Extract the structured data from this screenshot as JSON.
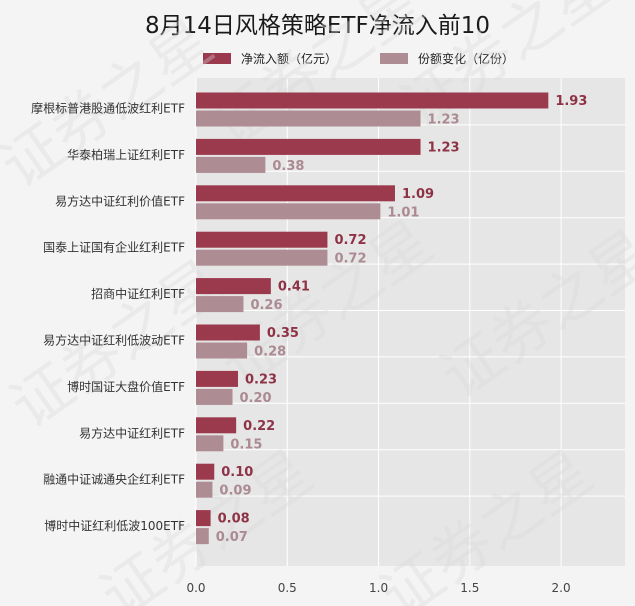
{
  "chart_data": {
    "type": "bar",
    "orientation": "horizontal",
    "title": "8月14日风格策略ETF净流入前10",
    "categories": [
      "摩根标普港股通低波红利ETF",
      "华泰柏瑞上证红利ETF",
      "易方达中证红利价值ETF",
      "国泰上证国有企业红利ETF",
      "招商中证红利ETF",
      "易方达中证红利低波动ETF",
      "博时国证大盘价值ETF",
      "易方达中证红利ETF",
      "融通中证诚通央企红利ETF",
      "博时中证红利低波100ETF"
    ],
    "series": [
      {
        "name": "净流入额（亿元）",
        "color": "#9b3a4d",
        "values": [
          1.93,
          1.23,
          1.09,
          0.72,
          0.41,
          0.35,
          0.23,
          0.22,
          0.1,
          0.08
        ],
        "labels": [
          "1.93",
          "1.23",
          "1.09",
          "0.72",
          "0.41",
          "0.35",
          "0.23",
          "0.22",
          "0.10",
          "0.08"
        ]
      },
      {
        "name": "份额变化（亿份）",
        "color": "#ae8c94",
        "values": [
          1.23,
          0.38,
          1.01,
          0.72,
          0.26,
          0.28,
          0.2,
          0.15,
          0.09,
          0.07
        ],
        "labels": [
          "1.23",
          "0.38",
          "1.01",
          "0.72",
          "0.26",
          "0.28",
          "0.20",
          "0.15",
          "0.09",
          "0.07"
        ]
      }
    ],
    "xlim": [
      0,
      2.35
    ],
    "xticks": [
      "0.0",
      "0.5",
      "1.0",
      "1.5",
      "2.0"
    ],
    "xtick_values": [
      0,
      0.5,
      1.0,
      1.5,
      2.0
    ],
    "grid": true,
    "legend_position": "top-center",
    "watermark": "证券之星"
  }
}
